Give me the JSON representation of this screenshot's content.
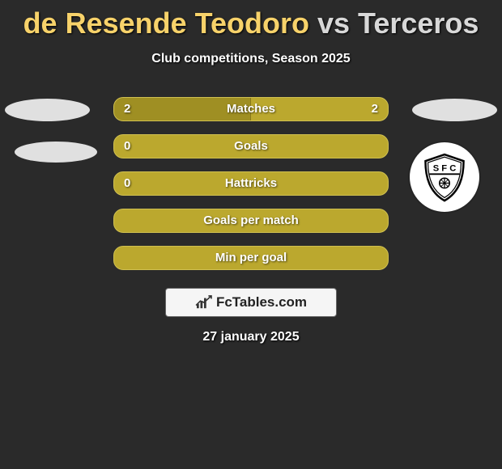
{
  "colors": {
    "background": "#2a2a2a",
    "player1": "#f7d26a",
    "player2": "#d8d8d8",
    "bar_base": "#bba82e",
    "bar_fill": "#9f8f23",
    "text_white": "#ffffff"
  },
  "title": {
    "player1_color": "#f7d26a",
    "player2_color": "#d8d8d8",
    "player1": "de Resende Teodoro",
    "vs": " vs ",
    "player2": "Terceros"
  },
  "subtitle": "Club competitions, Season 2025",
  "bars": [
    {
      "label": "Matches",
      "left": "2",
      "right": "2",
      "fill_pct": 50,
      "show_left": true,
      "show_right": true
    },
    {
      "label": "Goals",
      "left": "0",
      "right": "",
      "fill_pct": 0,
      "show_left": true,
      "show_right": false
    },
    {
      "label": "Hattricks",
      "left": "0",
      "right": "",
      "fill_pct": 0,
      "show_left": true,
      "show_right": false
    },
    {
      "label": "Goals per match",
      "left": "",
      "right": "",
      "fill_pct": 0,
      "show_left": false,
      "show_right": false
    },
    {
      "label": "Min per goal",
      "left": "",
      "right": "",
      "fill_pct": 0,
      "show_left": false,
      "show_right": false
    }
  ],
  "branding": "FcTables.com",
  "date": "27 january 2025"
}
